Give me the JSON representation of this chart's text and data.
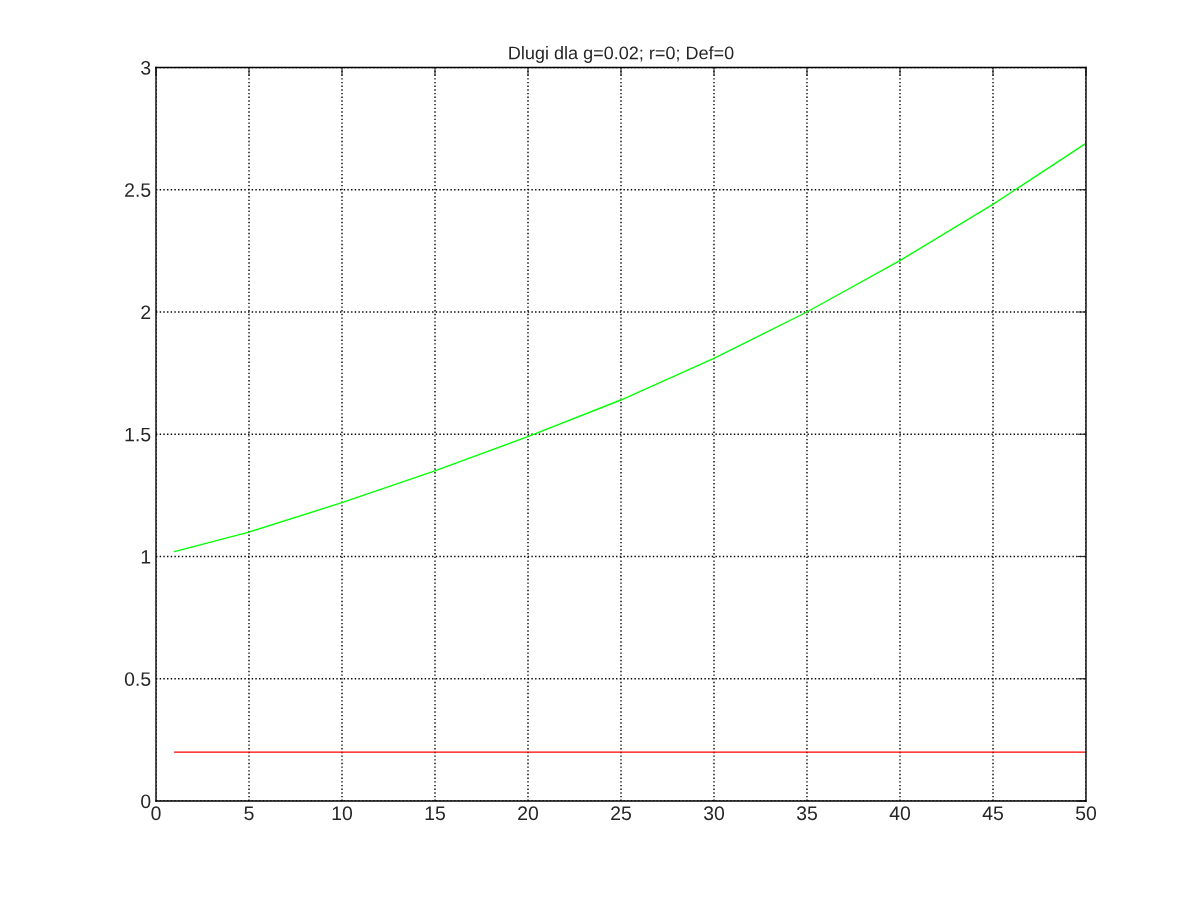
{
  "chart_data": {
    "type": "line",
    "title": "Dlugi dla g=0.02; r=0; Def=0",
    "series": [
      {
        "color": "#00ff00",
        "x": [
          1,
          5,
          10,
          15,
          20,
          25,
          30,
          35,
          40,
          45,
          50
        ],
        "values": [
          1.02,
          1.1,
          1.22,
          1.35,
          1.49,
          1.64,
          1.81,
          2.0,
          2.21,
          2.44,
          2.69
        ]
      },
      {
        "color": "#ff0000",
        "x": [
          1,
          50
        ],
        "values": [
          0.2,
          0.2
        ]
      }
    ],
    "xlim": [
      0,
      50
    ],
    "xticks": [
      0,
      5,
      10,
      15,
      20,
      25,
      30,
      35,
      40,
      45,
      50
    ],
    "ylim": [
      0,
      3
    ],
    "yticks": [
      0,
      0.5,
      1,
      1.5,
      2,
      2.5,
      3
    ],
    "grid": true,
    "line_style": "solid",
    "marker": "none"
  }
}
